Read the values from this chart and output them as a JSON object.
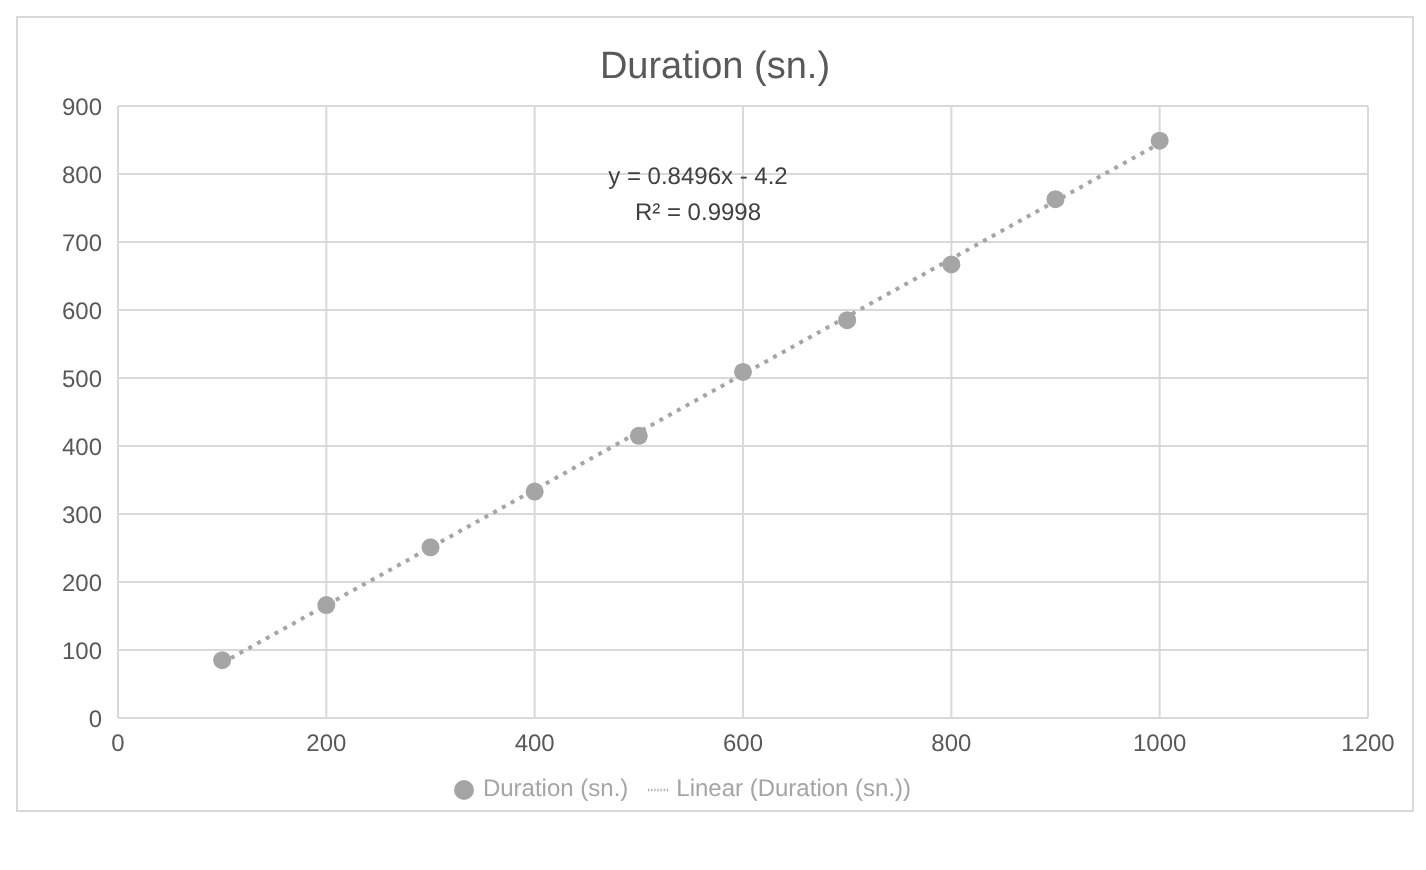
{
  "chart_data": {
    "type": "scatter",
    "title": "Duration (sn.)",
    "x": [
      100,
      200,
      300,
      400,
      500,
      600,
      700,
      800,
      900,
      1000
    ],
    "series": [
      {
        "name": "Duration (sn.)",
        "color": "#a5a5a5",
        "values": [
          85,
          166,
          251,
          333,
          415,
          509,
          585,
          667,
          763,
          849
        ]
      },
      {
        "name": "Linear (Duration (sn.))",
        "type": "line",
        "color": "#a5a5a5",
        "x": [
          100,
          1000
        ],
        "values": [
          81,
          845
        ],
        "line_style": "dotted",
        "marker": "none"
      }
    ],
    "annotations": [
      "y = 0.8496x - 4.2",
      "R² = 0.9998"
    ],
    "xlim": [
      0,
      1200
    ],
    "xticks": [
      0,
      200,
      400,
      600,
      800,
      1000,
      1200
    ],
    "ylim": [
      0,
      900
    ],
    "yticks": [
      0,
      100,
      200,
      300,
      400,
      500,
      600,
      700,
      800,
      900
    ],
    "grid": true,
    "legend": "bottom",
    "marker": "circle"
  }
}
